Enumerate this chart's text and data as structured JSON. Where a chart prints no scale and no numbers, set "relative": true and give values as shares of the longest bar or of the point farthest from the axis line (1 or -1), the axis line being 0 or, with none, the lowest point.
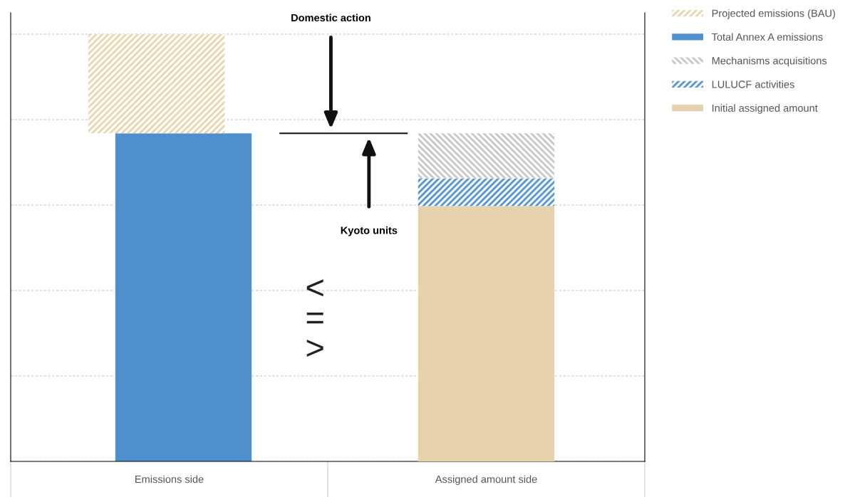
{
  "chart_data": {
    "type": "bar",
    "relative": true,
    "stacked": true,
    "categories": [
      "Emissions side",
      "Assigned amount side"
    ],
    "series": [
      {
        "name": "Total Annex A emissions",
        "color": "#4f8fcb",
        "values": [
          0.768,
          null
        ]
      },
      {
        "name": "Projected emissions (BAU)",
        "color": "#e8d3ac",
        "values": [
          0.232,
          null
        ]
      },
      {
        "name": "Initial assigned amount",
        "color": "#e7d2ae",
        "values": [
          null,
          0.598
        ]
      },
      {
        "name": "LULUCF activities",
        "color": "#4f8fcb",
        "values": [
          null,
          0.064
        ]
      },
      {
        "name": "Mechanisms acquisitions",
        "color": "#c5c5c5",
        "values": [
          null,
          0.106
        ]
      }
    ],
    "ref_lines": [
      {
        "axis": "y",
        "value": 0.768,
        "color": "#111111"
      }
    ],
    "annotations": [
      "Domestic action",
      "Kyoto units",
      "<\n=\n>"
    ],
    "grid": "y",
    "legend": "top right"
  }
}
